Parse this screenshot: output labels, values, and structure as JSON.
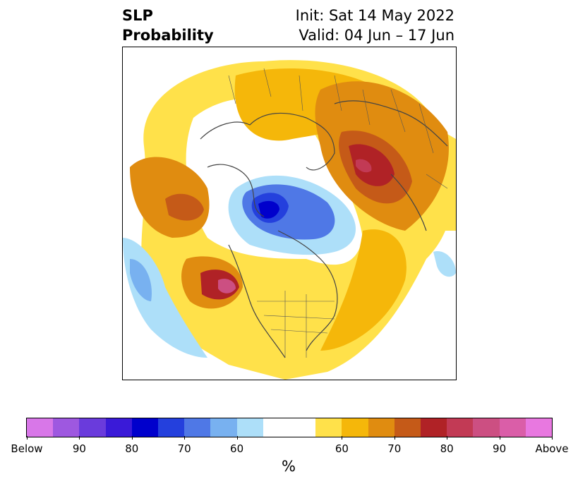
{
  "header": {
    "title_line1": "SLP",
    "title_line2": "Probability",
    "init_text": "Init: Sat 14 May 2022",
    "valid_text": "Valid: 04 Jun – 17 Jun"
  },
  "colorbar": {
    "unit": "%",
    "colors": [
      "#d877e8",
      "#9e58e0",
      "#6a3bdc",
      "#3a1ad8",
      "#0000cc",
      "#2440dd",
      "#4f78e6",
      "#78b1f0",
      "#addff9",
      "#ffffff",
      "#ffe14a",
      "#f5b70a",
      "#e08c10",
      "#c55a18",
      "#b02226",
      "#c23a55",
      "#cc4f82",
      "#da5ea8",
      "#e878e0"
    ],
    "tick_labels": [
      "Below",
      "90",
      "80",
      "70",
      "60",
      "60",
      "70",
      "80",
      "90",
      "Above"
    ]
  },
  "map": {
    "projection": "north-polar-stereographic",
    "shading": "SLP tercile probability"
  }
}
